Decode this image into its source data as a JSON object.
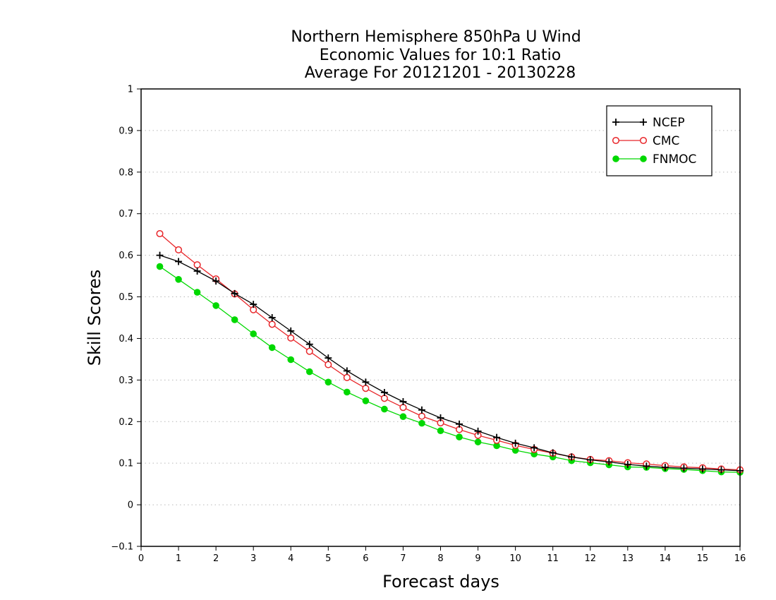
{
  "chart_data": {
    "type": "line",
    "title_lines": [
      "Northern Hemisphere 850hPa U Wind",
      "Economic Values for 10:1 Ratio",
      "Average For 20121201 - 20130228"
    ],
    "xlabel": "Forecast days",
    "ylabel": "Skill Scores",
    "xlim": [
      0,
      16
    ],
    "ylim": [
      -0.1,
      1
    ],
    "xticks": [
      0,
      1,
      2,
      3,
      4,
      5,
      6,
      7,
      8,
      9,
      10,
      11,
      12,
      13,
      14,
      15,
      16
    ],
    "xtick_labels": [
      "0",
      "1",
      "2",
      "3",
      "4",
      "5",
      "6",
      "7",
      "8",
      "9",
      "10",
      "11",
      "12",
      "13",
      "14",
      "15",
      "16"
    ],
    "yticks": [
      -0.1,
      0,
      0.1,
      0.2,
      0.3,
      0.4,
      0.5,
      0.6,
      0.7,
      0.8,
      0.9,
      1
    ],
    "ytick_labels": [
      "−0.1",
      "0",
      "0.1",
      "0.2",
      "0.3",
      "0.4",
      "0.5",
      "0.6",
      "0.7",
      "0.8",
      "0.9",
      "1"
    ],
    "grid": "horizontal dotted",
    "legend_position": "top-right",
    "x": [
      0.5,
      1,
      1.5,
      2,
      2.5,
      3,
      3.5,
      4,
      4.5,
      5,
      5.5,
      6,
      6.5,
      7,
      7.5,
      8,
      8.5,
      9,
      9.5,
      10,
      10.5,
      11,
      11.5,
      12,
      12.5,
      13,
      13.5,
      14,
      14.5,
      15,
      15.5,
      16
    ],
    "series": [
      {
        "name": "NCEP",
        "color": "#000000",
        "marker": "plus",
        "values": [
          0.6,
          0.585,
          0.562,
          0.538,
          0.508,
          0.482,
          0.45,
          0.418,
          0.386,
          0.353,
          0.322,
          0.295,
          0.27,
          0.248,
          0.228,
          0.209,
          0.194,
          0.177,
          0.162,
          0.148,
          0.137,
          0.125,
          0.115,
          0.108,
          0.103,
          0.097,
          0.093,
          0.09,
          0.088,
          0.086,
          0.084,
          0.082
        ]
      },
      {
        "name": "CMC",
        "color": "#e8262a",
        "marker": "open-circle",
        "values": [
          0.652,
          0.613,
          0.577,
          0.543,
          0.507,
          0.469,
          0.434,
          0.401,
          0.369,
          0.337,
          0.306,
          0.28,
          0.256,
          0.234,
          0.213,
          0.197,
          0.181,
          0.167,
          0.155,
          0.143,
          0.133,
          0.124,
          0.115,
          0.109,
          0.106,
          0.101,
          0.098,
          0.094,
          0.091,
          0.089,
          0.086,
          0.084
        ]
      },
      {
        "name": "FNMOC",
        "color": "#00d800",
        "marker": "filled-circle",
        "values": [
          0.573,
          0.542,
          0.511,
          0.479,
          0.445,
          0.411,
          0.378,
          0.349,
          0.32,
          0.295,
          0.271,
          0.25,
          0.23,
          0.212,
          0.196,
          0.178,
          0.163,
          0.151,
          0.142,
          0.131,
          0.122,
          0.115,
          0.106,
          0.101,
          0.096,
          0.091,
          0.09,
          0.087,
          0.085,
          0.082,
          0.079,
          0.078
        ]
      }
    ]
  }
}
